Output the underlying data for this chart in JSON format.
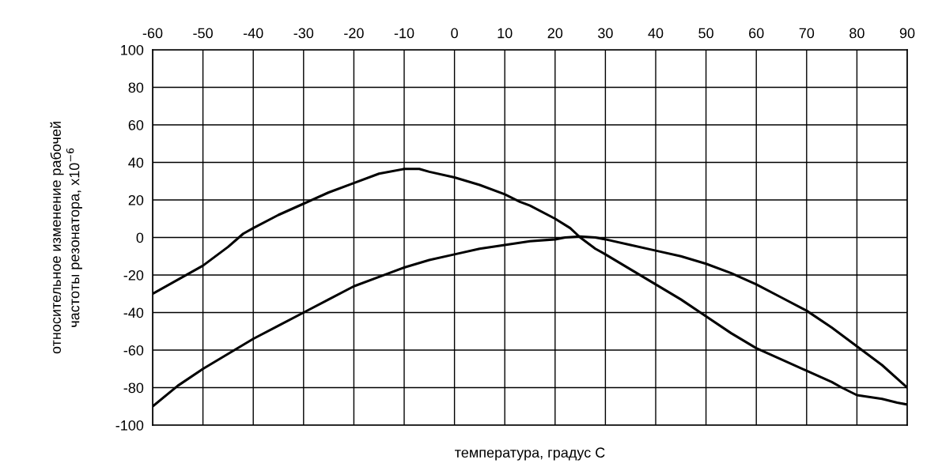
{
  "chart_data": {
    "type": "line",
    "xlabel": "температура, градус С",
    "ylabel": "относительное изменение рабочей\nчастоты резонатора, x10$^{−6}$",
    "xlim": [
      -60,
      90
    ],
    "xticks": [
      -60,
      -50,
      -40,
      -30,
      -20,
      -10,
      0,
      10,
      20,
      30,
      40,
      50,
      60,
      70,
      80,
      90
    ],
    "ylim": [
      -100,
      100
    ],
    "yticks": [
      -100,
      -80,
      -60,
      -40,
      -20,
      0,
      20,
      40,
      60,
      80,
      100
    ],
    "grid": true,
    "legend": false,
    "marker": "none",
    "line_style": "solid",
    "series": [
      {
        "color": "#000000",
        "x": [
          -60,
          -50,
          -45,
          -42,
          -40,
          -35,
          -30,
          -25,
          -20,
          -15,
          -10,
          -7,
          -5,
          0,
          5,
          10,
          13,
          15,
          20,
          23,
          25,
          28,
          30,
          35,
          40,
          45,
          50,
          55,
          60,
          65,
          70,
          75,
          77,
          80,
          85,
          88,
          90
        ],
        "values": [
          -30,
          -15,
          -5,
          2,
          5,
          12,
          18,
          24,
          29,
          34,
          36.5,
          36.5,
          35,
          32,
          28,
          23,
          19,
          17,
          10,
          5,
          0,
          -6,
          -9,
          -17,
          -25,
          -33,
          -42,
          -51,
          -59,
          -65,
          -71,
          -77,
          -80,
          -84,
          -86,
          -88,
          -89
        ]
      },
      {
        "color": "#000000",
        "x": [
          -60,
          -55,
          -50,
          -45,
          -40,
          -35,
          -30,
          -25,
          -20,
          -15,
          -10,
          -5,
          0,
          5,
          10,
          15,
          20,
          22,
          25,
          28,
          30,
          35,
          40,
          45,
          50,
          55,
          60,
          65,
          70,
          75,
          77,
          80,
          85,
          90
        ],
        "values": [
          -90,
          -79,
          -70,
          -62,
          -54,
          -47,
          -40,
          -33,
          -26,
          -21,
          -16,
          -12,
          -9,
          -6,
          -4,
          -2,
          -1,
          0,
          0.5,
          0,
          -1,
          -4,
          -7,
          -10,
          -14,
          -19,
          -25,
          -32,
          -39,
          -48,
          -52,
          -58,
          -68,
          -80
        ]
      }
    ]
  }
}
